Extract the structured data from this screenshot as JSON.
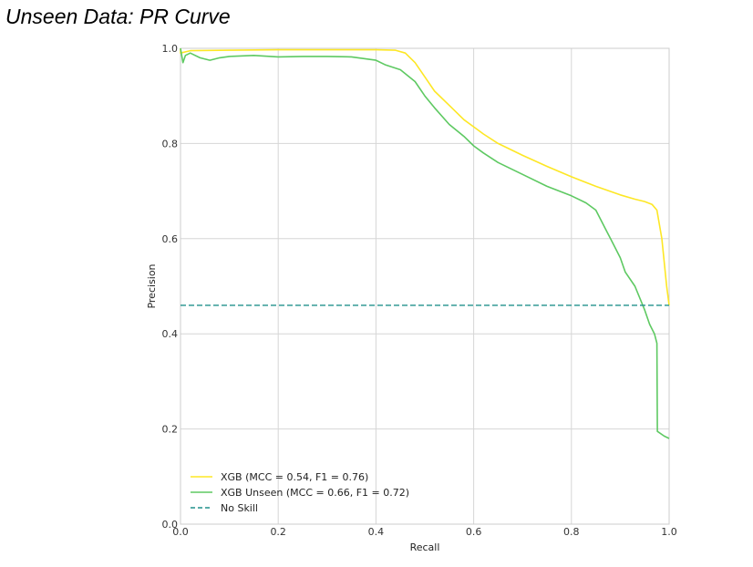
{
  "page": {
    "title": "Unseen Data: PR Curve"
  },
  "chart_data": {
    "type": "line",
    "title": "",
    "xlabel": "Recall",
    "ylabel": "Precision",
    "xlim": [
      0.0,
      1.0
    ],
    "ylim": [
      0.0,
      1.0
    ],
    "xticks": [
      "0.0",
      "0.2",
      "0.4",
      "0.6",
      "0.8",
      "1.0"
    ],
    "yticks": [
      "0.0",
      "0.2",
      "0.4",
      "0.6",
      "0.8",
      "1.0"
    ],
    "grid": true,
    "legend_position": "lower-left",
    "series": [
      {
        "name": "XGB (MCC = 0.54, F1 = 0.76)",
        "color": "#fde725",
        "style": "solid",
        "x": [
          0.0,
          0.0,
          0.02,
          0.1,
          0.2,
          0.3,
          0.4,
          0.44,
          0.46,
          0.48,
          0.5,
          0.52,
          0.55,
          0.58,
          0.6,
          0.62,
          0.65,
          0.7,
          0.75,
          0.8,
          0.85,
          0.9,
          0.93,
          0.95,
          0.965,
          0.975,
          0.985,
          0.995,
          1.0
        ],
        "y": [
          1.0,
          0.99,
          0.995,
          0.996,
          0.997,
          0.997,
          0.997,
          0.996,
          0.99,
          0.97,
          0.94,
          0.91,
          0.88,
          0.85,
          0.835,
          0.82,
          0.8,
          0.775,
          0.752,
          0.73,
          0.71,
          0.692,
          0.683,
          0.678,
          0.672,
          0.66,
          0.6,
          0.5,
          0.46
        ]
      },
      {
        "name": "XGB Unseen (MCC = 0.66, F1 = 0.72)",
        "color": "#5ec962",
        "style": "solid",
        "x": [
          0.0,
          0.005,
          0.01,
          0.02,
          0.04,
          0.06,
          0.08,
          0.1,
          0.15,
          0.2,
          0.25,
          0.3,
          0.35,
          0.4,
          0.42,
          0.45,
          0.48,
          0.5,
          0.52,
          0.55,
          0.58,
          0.6,
          0.62,
          0.65,
          0.7,
          0.75,
          0.8,
          0.83,
          0.85,
          0.87,
          0.88,
          0.9,
          0.91,
          0.93,
          0.95,
          0.96,
          0.97,
          0.975,
          0.976,
          0.99,
          1.0
        ],
        "y": [
          1.0,
          0.97,
          0.985,
          0.99,
          0.98,
          0.975,
          0.98,
          0.983,
          0.985,
          0.982,
          0.983,
          0.983,
          0.982,
          0.975,
          0.965,
          0.955,
          0.93,
          0.9,
          0.875,
          0.84,
          0.815,
          0.795,
          0.78,
          0.76,
          0.735,
          0.71,
          0.69,
          0.675,
          0.66,
          0.62,
          0.6,
          0.56,
          0.53,
          0.5,
          0.45,
          0.42,
          0.4,
          0.38,
          0.195,
          0.185,
          0.18
        ]
      },
      {
        "name": "No Skill",
        "color": "#21918c",
        "style": "dashed",
        "x": [
          0.0,
          1.0
        ],
        "y": [
          0.46,
          0.46
        ]
      }
    ]
  }
}
